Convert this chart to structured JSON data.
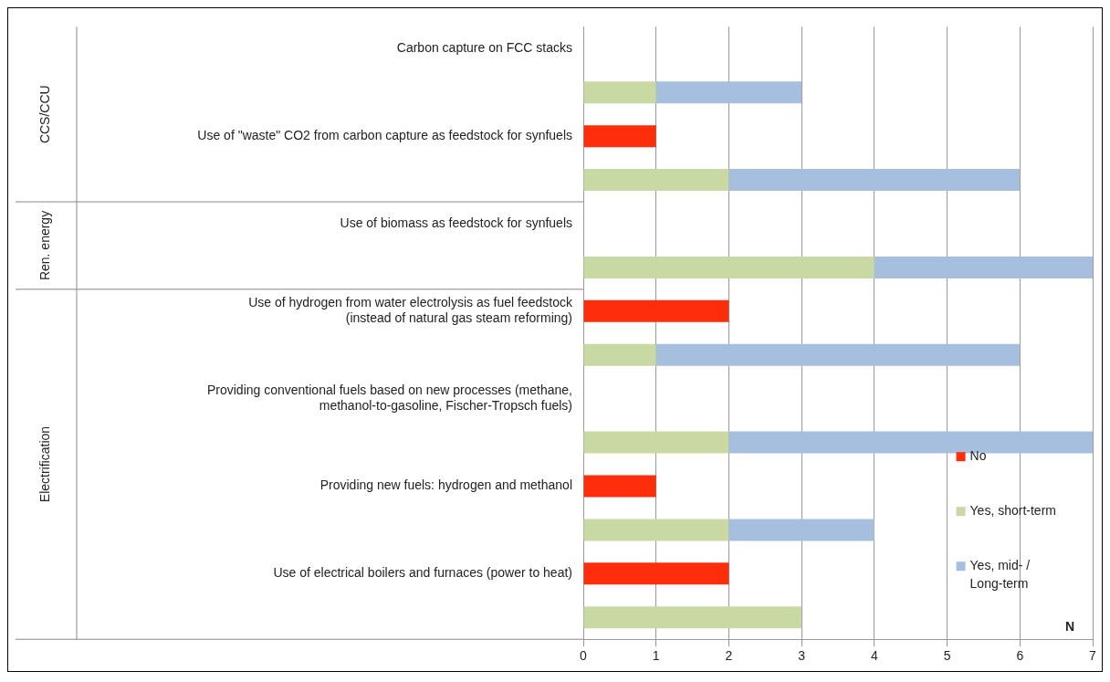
{
  "chart_data": {
    "type": "bar",
    "orientation": "horizontal",
    "stacked": true,
    "categories": [
      "Carbon capture on FCC stacks",
      null,
      "Use of \"waste\" CO2 from carbon capture as feedstock for synfuels",
      null,
      "Use of biomass as feedstock for synfuels",
      null,
      "Use of hydrogen from water electrolysis as fuel feedstock\n(instead of natural gas steam reforming)",
      null,
      "Providing conventional fuels based on new processes (methane,\nmethanol-to-gasoline, Fischer-Tropsch fuels)",
      null,
      "Providing new fuels: hydrogen and methanol",
      null,
      "Use of electrical boilers and furnaces (power to heat)",
      null
    ],
    "series": [
      {
        "name": "No",
        "color": "#fe2e0c",
        "values": [
          null,
          null,
          1,
          null,
          null,
          null,
          2,
          null,
          null,
          null,
          1,
          null,
          2,
          null
        ]
      },
      {
        "name": "Yes, short-term",
        "color": "#c9d9a4",
        "values": [
          null,
          1,
          null,
          2,
          null,
          4,
          null,
          1,
          null,
          2,
          null,
          2,
          null,
          3
        ]
      },
      {
        "name": "Yes, mid- / Long-term",
        "color": "#a6bfdf",
        "values": [
          null,
          2,
          null,
          4,
          null,
          3,
          null,
          5,
          null,
          5,
          null,
          2,
          null,
          null
        ]
      }
    ],
    "xlim": [
      0,
      7
    ],
    "xticks": [
      0,
      1,
      2,
      3,
      4,
      5,
      6,
      7
    ],
    "xlabel": "N",
    "grid": "x",
    "legend": "bottom right",
    "annotations": [
      "CCS/CCU",
      "Ren. energy",
      "Electrification"
    ]
  }
}
